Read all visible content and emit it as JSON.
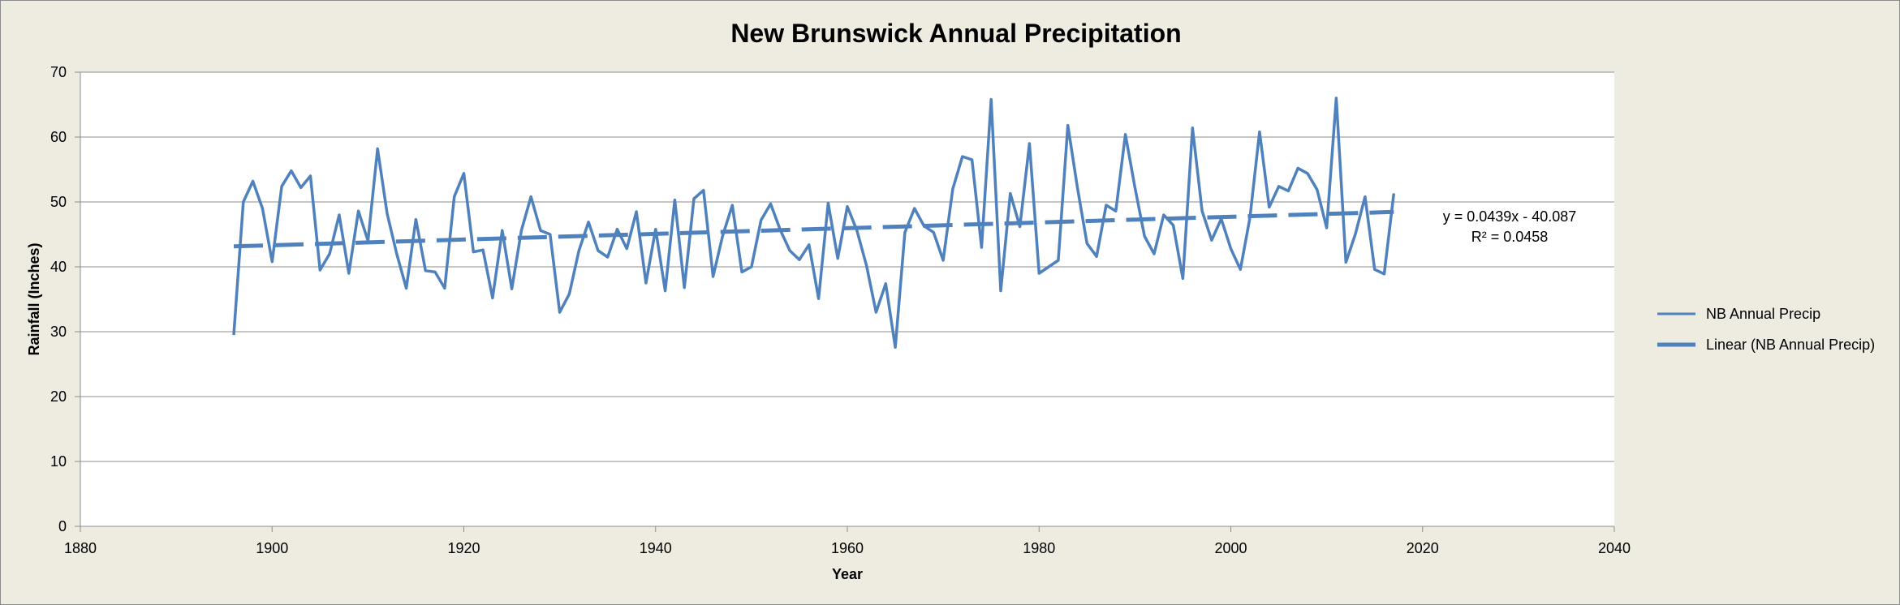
{
  "chart_data": {
    "type": "line",
    "title": "New Brunswick Annual Precipitation",
    "xlabel": "Year",
    "ylabel": "Rainfall (Inches)",
    "xlim": [
      1880,
      2040
    ],
    "ylim": [
      0,
      70
    ],
    "xticks": [
      1880,
      1900,
      1920,
      1940,
      1960,
      1980,
      2000,
      2020,
      2040
    ],
    "yticks": [
      0,
      10,
      20,
      30,
      40,
      50,
      60,
      70
    ],
    "grid": "horizontal",
    "legend_position": "right",
    "series": [
      {
        "name": "NB Annual Precip",
        "color": "#4f81bd",
        "style": "solid",
        "x": [
          1896,
          1897,
          1898,
          1899,
          1900,
          1901,
          1902,
          1903,
          1904,
          1905,
          1906,
          1907,
          1908,
          1909,
          1910,
          1911,
          1912,
          1913,
          1914,
          1915,
          1916,
          1917,
          1918,
          1919,
          1920,
          1921,
          1922,
          1923,
          1924,
          1925,
          1926,
          1927,
          1928,
          1929,
          1930,
          1931,
          1932,
          1933,
          1934,
          1935,
          1936,
          1937,
          1938,
          1939,
          1940,
          1941,
          1942,
          1943,
          1944,
          1945,
          1946,
          1947,
          1948,
          1949,
          1950,
          1951,
          1952,
          1953,
          1954,
          1955,
          1956,
          1957,
          1958,
          1959,
          1960,
          1961,
          1962,
          1963,
          1964,
          1965,
          1966,
          1967,
          1968,
          1969,
          1970,
          1971,
          1972,
          1973,
          1974,
          1975,
          1976,
          1977,
          1978,
          1979,
          1980,
          1981,
          1982,
          1983,
          1984,
          1985,
          1986,
          1987,
          1988,
          1989,
          1990,
          1991,
          1992,
          1993,
          1994,
          1995,
          1996,
          1997,
          1998,
          1999,
          2000,
          2001,
          2002,
          2003,
          2004,
          2005,
          2006,
          2007,
          2008,
          2009,
          2010,
          2011,
          2012,
          2013,
          2014,
          2015,
          2016,
          2017
        ],
        "values": [
          29.5,
          50.0,
          53.2,
          49.0,
          40.8,
          52.4,
          54.8,
          52.2,
          54.0,
          39.5,
          42.0,
          48.0,
          39.0,
          48.6,
          44.0,
          58.2,
          48.2,
          42.0,
          36.7,
          47.3,
          39.4,
          39.2,
          36.7,
          50.8,
          54.4,
          42.3,
          42.6,
          35.2,
          45.6,
          36.6,
          45.6,
          50.8,
          45.6,
          45.0,
          33.0,
          35.8,
          42.5,
          46.9,
          42.5,
          41.5,
          45.8,
          42.8,
          48.5,
          37.5,
          45.8,
          36.3,
          50.3,
          36.8,
          50.5,
          51.8,
          38.5,
          44.8,
          49.5,
          39.2,
          40.0,
          47.2,
          49.7,
          45.7,
          42.5,
          41.1,
          43.4,
          35.1,
          49.8,
          41.3,
          49.3,
          45.6,
          40.2,
          33.0,
          37.4,
          27.6,
          45.3,
          49.0,
          46.3,
          45.3,
          41.0,
          52.0,
          57.0,
          56.5,
          43.0,
          65.8,
          36.3,
          51.3,
          46.2,
          59.0,
          39.0,
          40.0,
          41.0,
          61.8,
          52.2,
          43.6,
          41.6,
          49.5,
          48.6,
          60.4,
          52.2,
          44.7,
          42.0,
          48.0,
          46.4,
          38.2,
          61.4,
          48.6,
          44.1,
          47.4,
          42.8,
          39.6,
          47.6,
          60.8,
          49.2,
          52.4,
          51.7,
          55.2,
          54.4,
          51.9,
          46.0,
          66.0,
          40.7,
          45.1,
          50.8,
          39.6,
          38.9,
          51.3
        ]
      },
      {
        "name": "Linear (NB Annual Precip)",
        "color": "#4f81bd",
        "style": "dashed",
        "x": [
          1896,
          2017
        ],
        "values": [
          43.15,
          48.46
        ]
      }
    ],
    "annotations": [
      "y = 0.0439x - 40.087",
      "R² = 0.0458"
    ]
  }
}
